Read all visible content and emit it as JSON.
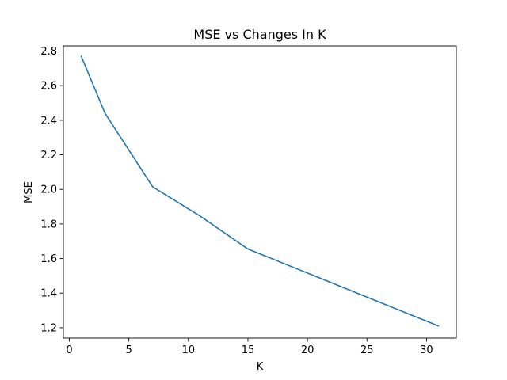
{
  "chart_data": {
    "type": "line",
    "title": "MSE vs Changes In K",
    "xlabel": "K",
    "ylabel": "MSE",
    "xlim": [
      -0.5,
      32.5
    ],
    "ylim": [
      1.14,
      2.83
    ],
    "xticks": [
      0,
      5,
      10,
      15,
      20,
      25,
      30
    ],
    "yticks": [
      1.2,
      1.4,
      1.6,
      1.8,
      2.0,
      2.2,
      2.4,
      2.6,
      2.8
    ],
    "xtick_labels": [
      "0",
      "5",
      "10",
      "15",
      "20",
      "25",
      "30"
    ],
    "ytick_labels": [
      "1.2",
      "1.4",
      "1.6",
      "1.8",
      "2.0",
      "2.2",
      "2.4",
      "2.6",
      "2.8"
    ],
    "grid": false,
    "series": [
      {
        "color": "#1f77b4",
        "x": [
          1,
          3,
          7,
          11,
          15,
          31
        ],
        "y": [
          2.77,
          2.44,
          2.015,
          1.845,
          1.655,
          1.21
        ]
      }
    ]
  }
}
